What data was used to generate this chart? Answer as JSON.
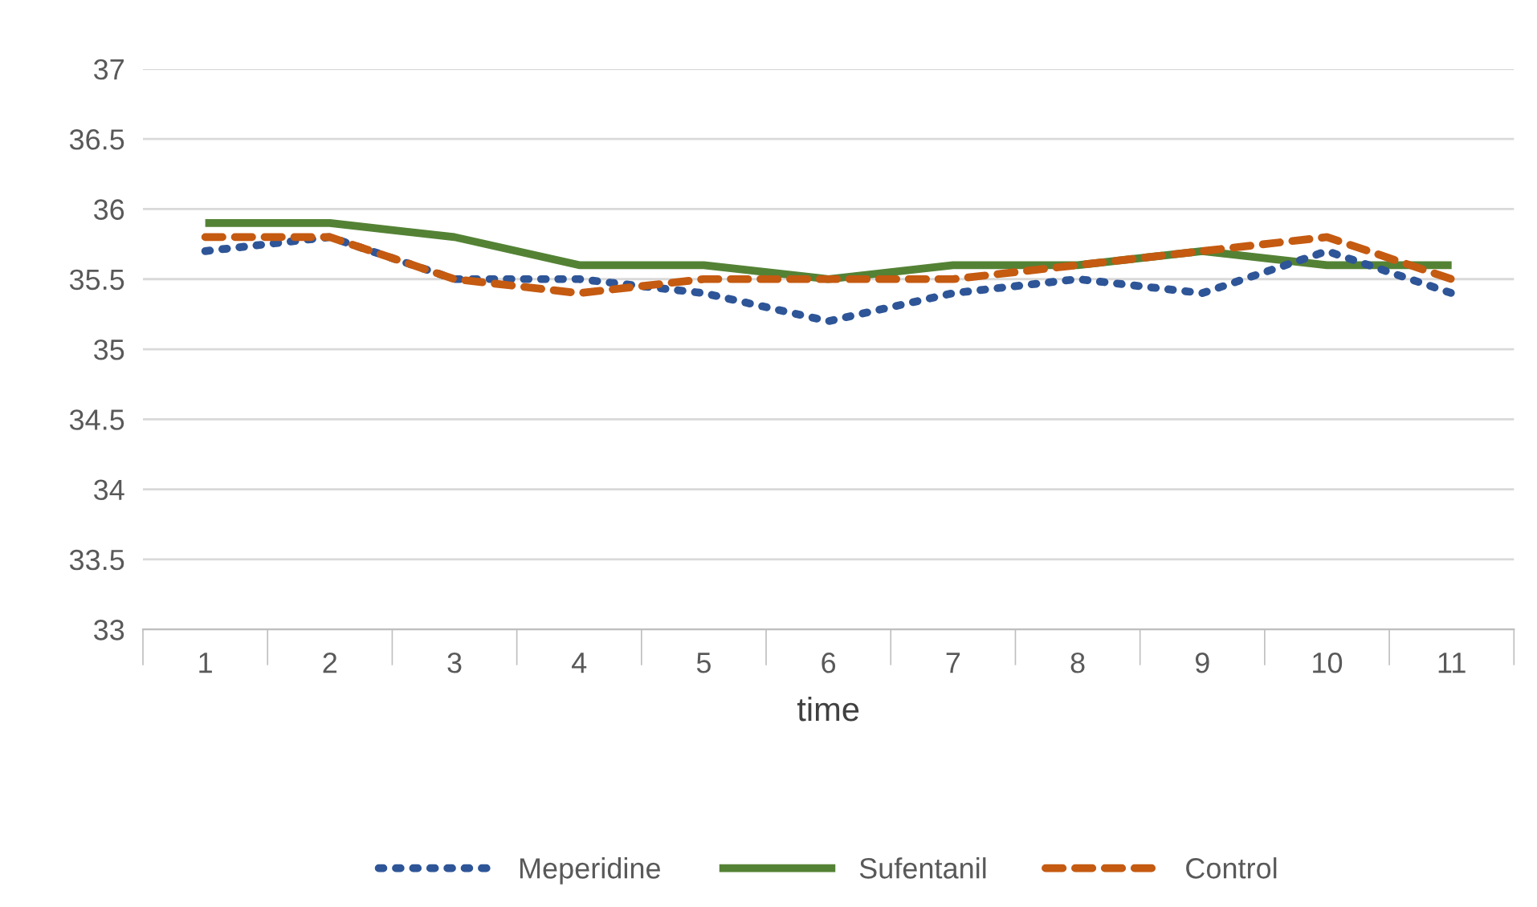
{
  "chart_data": {
    "type": "line",
    "xlabel": "time",
    "categories": [
      "1",
      "2",
      "3",
      "4",
      "5",
      "6",
      "7",
      "8",
      "9",
      "10",
      "11"
    ],
    "series": [
      {
        "name": "Meperidine",
        "color": "#2e5597",
        "line_style": "dotted",
        "values": [
          35.7,
          35.8,
          35.5,
          35.5,
          35.4,
          35.2,
          35.4,
          35.5,
          35.4,
          35.7,
          35.4
        ]
      },
      {
        "name": "Sufentanil",
        "color": "#548235",
        "line_style": "solid",
        "values": [
          35.9,
          35.9,
          35.8,
          35.6,
          35.6,
          35.5,
          35.6,
          35.6,
          35.7,
          35.6,
          35.6
        ]
      },
      {
        "name": "Control",
        "color": "#c55a11",
        "line_style": "dashed",
        "values": [
          35.8,
          35.8,
          35.5,
          35.4,
          35.5,
          35.5,
          35.5,
          35.6,
          35.7,
          35.8,
          35.5
        ]
      }
    ],
    "ylim": [
      33,
      37
    ],
    "yticks": [
      33,
      33.5,
      34,
      34.5,
      35,
      35.5,
      36,
      36.5,
      37
    ],
    "grid": "y",
    "legend": "bottom"
  }
}
